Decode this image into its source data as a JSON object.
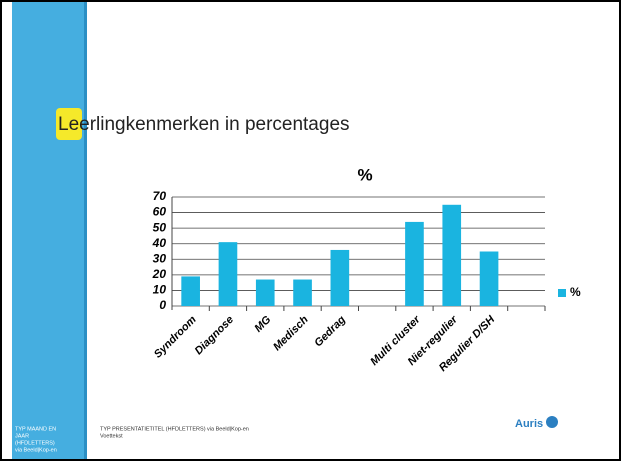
{
  "slide": {
    "title": "Leerlingkenmerken in percentages",
    "footer_left": [
      "TYP MAAND EN",
      "JAAR",
      "(HFDLETTERS)",
      "via Beeld|Kop-en"
    ],
    "footer_center": [
      "TYP PRESENTATIETITEL (HFDLETTERS) via Beeld|Kop-en",
      "Voettekst"
    ],
    "logo": "Auris"
  },
  "chart_data": {
    "type": "bar",
    "title": "%",
    "categories": [
      "Syndroom",
      "Diagnose",
      "MG",
      "Medisch",
      "Gedrag",
      null,
      "Multi cluster",
      "Niet-regulier",
      "Regulier D/SH",
      null
    ],
    "series": [
      {
        "name": "%",
        "color": "#1ab4e0",
        "values": [
          19,
          41,
          17,
          17,
          36,
          null,
          54,
          65,
          35,
          null
        ]
      }
    ],
    "ylim": [
      0,
      70
    ],
    "yticks": [
      0,
      10,
      20,
      30,
      40,
      50,
      60,
      70
    ],
    "grid": true,
    "legend": "right"
  }
}
